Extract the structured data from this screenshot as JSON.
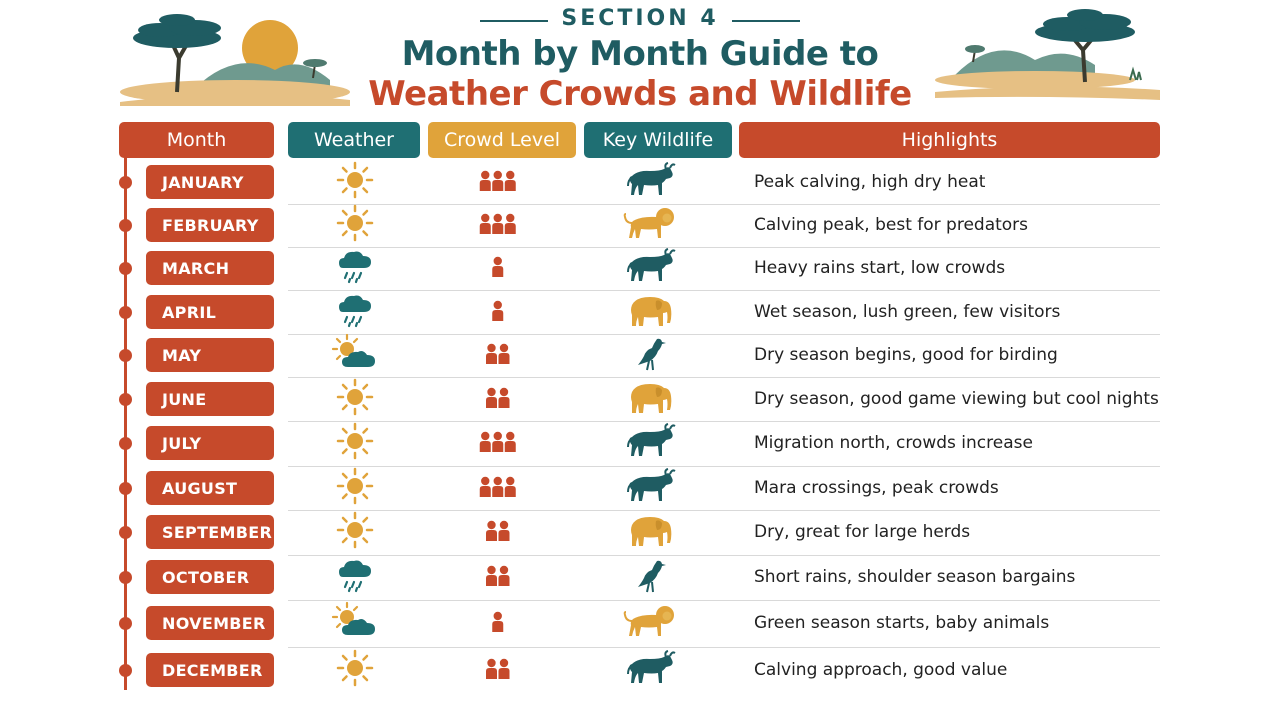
{
  "header": {
    "kicker": "SECTION 4",
    "title_line1": "Month by Month Guide to",
    "title_line2": "Weather Crowds and Wildlife"
  },
  "columns": {
    "month": "Month",
    "weather": "Weather",
    "crowd": "Crowd Level",
    "wildlife": "Key Wildlife",
    "highlights": "Highlights"
  },
  "colors": {
    "rust": "#c64a2b",
    "teal": "#1f6f73",
    "ochre": "#e0a33a",
    "dark_teal": "#1f5c62"
  },
  "rows": [
    {
      "month": "JANUARY",
      "weather": "sun-icon",
      "crowd": 3,
      "wildlife": "wildebeest-icon",
      "highlight": "Peak calving, high dry heat"
    },
    {
      "month": "FEBRUARY",
      "weather": "sun-icon",
      "crowd": 3,
      "wildlife": "lion-icon",
      "highlight": "Calving peak, best for predators"
    },
    {
      "month": "MARCH",
      "weather": "rain-cloud-icon",
      "crowd": 1,
      "wildlife": "wildebeest-icon",
      "highlight": "Heavy rains start, low crowds"
    },
    {
      "month": "APRIL",
      "weather": "rain-cloud-icon",
      "crowd": 1,
      "wildlife": "elephant-icon",
      "highlight": "Wet season, lush green, few visitors"
    },
    {
      "month": "MAY",
      "weather": "partly-cloudy-icon",
      "crowd": 2,
      "wildlife": "bird-icon",
      "highlight": "Dry season begins, good for birding"
    },
    {
      "month": "JUNE",
      "weather": "sun-icon",
      "crowd": 2,
      "wildlife": "elephant-icon",
      "highlight": "Dry season, good game viewing but cool nights"
    },
    {
      "month": "JULY",
      "weather": "sun-icon",
      "crowd": 3,
      "wildlife": "wildebeest-icon",
      "highlight": "Migration north, crowds increase"
    },
    {
      "month": "AUGUST",
      "weather": "sun-icon",
      "crowd": 3,
      "wildlife": "wildebeest-icon",
      "highlight": "Mara crossings, peak crowds"
    },
    {
      "month": "SEPTEMBER",
      "weather": "sun-icon",
      "crowd": 2,
      "wildlife": "elephant-icon",
      "highlight": "Dry, great for large herds"
    },
    {
      "month": "OCTOBER",
      "weather": "rain-cloud-icon",
      "crowd": 2,
      "wildlife": "bird-icon",
      "highlight": "Short rains, shoulder season bargains"
    },
    {
      "month": "NOVEMBER",
      "weather": "partly-cloudy-icon",
      "crowd": 1,
      "wildlife": "lion-icon",
      "highlight": "Green season starts, baby animals"
    },
    {
      "month": "DECEMBER",
      "weather": "sun-icon",
      "crowd": 2,
      "wildlife": "wildebeest-icon",
      "highlight": "Calving approach, good value"
    }
  ]
}
